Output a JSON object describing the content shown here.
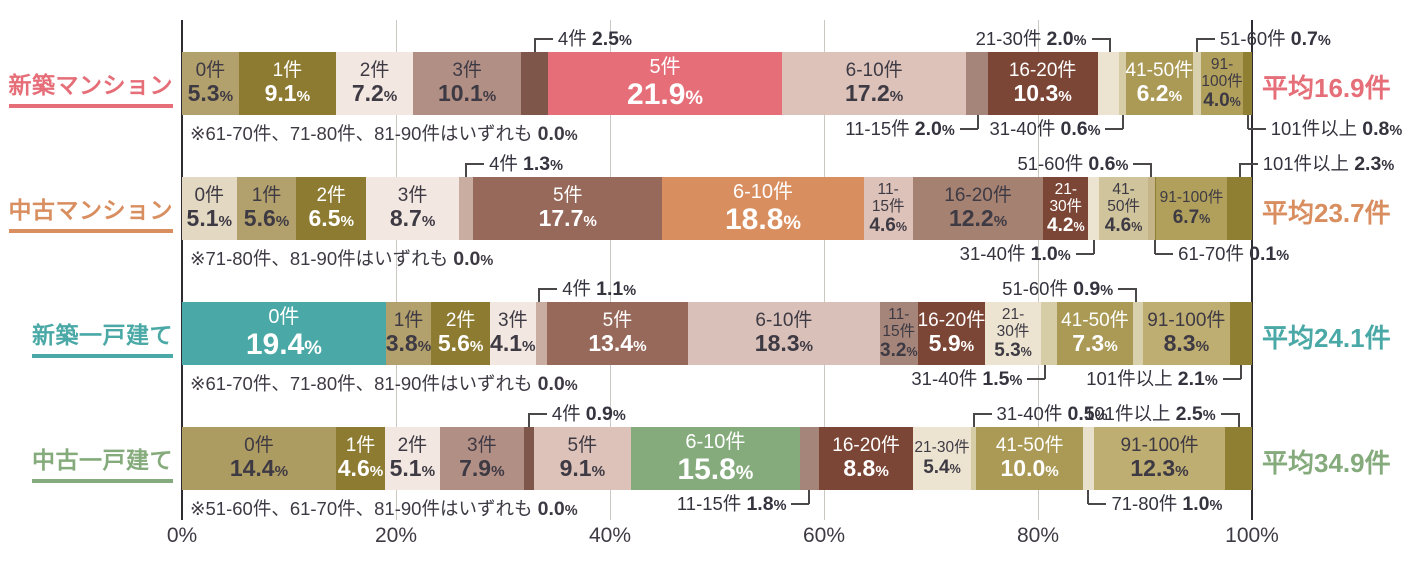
{
  "chart_data": {
    "type": "bar",
    "variant": "horizontal-100pct-stacked",
    "title": "",
    "x_axis": {
      "ticks": [
        "0%",
        "20%",
        "40%",
        "60%",
        "80%",
        "100%"
      ],
      "range": [
        0,
        100
      ],
      "grid": true
    },
    "categories": [
      "0件",
      "1件",
      "2件",
      "3件",
      "4件",
      "5件",
      "6-10件",
      "11-15件",
      "16-20件",
      "21-30件",
      "31-40件",
      "41-50件",
      "51-60件",
      "61-70件",
      "71-80件",
      "81-90件",
      "91-100件",
      "101件以上"
    ],
    "rows": [
      {
        "label": "新築マンション",
        "accent": "#e56e78",
        "average_label": "平均16.9件",
        "note": {
          "text": "※61-70件、71-80件、81-90件はいずれも ",
          "value": "0.0",
          "suffix": "%"
        },
        "zero_categories": [
          "61-70件",
          "71-80件",
          "81-90件"
        ],
        "segments": [
          {
            "cat": "0件",
            "pct": "5.3",
            "color": "#b3a16d",
            "tc": "d",
            "lines": [
              "0件"
            ],
            "size": "m",
            "co": null
          },
          {
            "cat": "1件",
            "pct": "9.1",
            "color": "#8d7b31",
            "tc": "w",
            "lines": [
              "1件"
            ],
            "size": "m",
            "co": null
          },
          {
            "cat": "2件",
            "pct": "7.2",
            "color": "#f2e8e1",
            "tc": "d",
            "lines": [
              "2件"
            ],
            "size": "m",
            "co": null
          },
          {
            "cat": "3件",
            "pct": "10.1",
            "color": "#b28f85",
            "tc": "d",
            "lines": [
              "3件"
            ],
            "size": "m",
            "co": null
          },
          {
            "cat": "4件",
            "pct": "2.5",
            "color": "#7e564a",
            "tc": "d",
            "lines": [],
            "size": "m",
            "co": {
              "side": "above",
              "text": "right"
            }
          },
          {
            "cat": "5件",
            "pct": "21.9",
            "color": "#e56e78",
            "tc": "w",
            "lines": [
              "5件"
            ],
            "size": "l",
            "co": null
          },
          {
            "cat": "6-10件",
            "pct": "17.2",
            "color": "#dcc2b9",
            "tc": "d",
            "lines": [
              "6-10件"
            ],
            "size": "m",
            "co": null
          },
          {
            "cat": "11-15件",
            "pct": "2.0",
            "color": "#a5857a",
            "tc": "d",
            "lines": [],
            "size": "m",
            "co": {
              "side": "below",
              "text": "left"
            }
          },
          {
            "cat": "16-20件",
            "pct": "10.3",
            "color": "#7c4636",
            "tc": "w",
            "lines": [
              "16-20件"
            ],
            "size": "m",
            "co": null
          },
          {
            "cat": "21-30件",
            "pct": "2.0",
            "color": "#ece4d0",
            "tc": "d",
            "lines": [],
            "size": "m",
            "co": {
              "side": "above",
              "text": "left"
            }
          },
          {
            "cat": "31-40件",
            "pct": "0.6",
            "color": "#d6cca6",
            "tc": "d",
            "lines": [],
            "size": "m",
            "co": {
              "side": "below",
              "text": "left"
            }
          },
          {
            "cat": "41-50件",
            "pct": "6.2",
            "color": "#ab9a55",
            "tc": "w",
            "lines": [
              "41-50件"
            ],
            "size": "m",
            "co": null
          },
          {
            "cat": "51-60件",
            "pct": "0.7",
            "color": "#d9d0ae",
            "tc": "d",
            "lines": [],
            "size": "m",
            "co": {
              "side": "above",
              "text": "right"
            }
          },
          {
            "cat": "91-100件",
            "pct": "4.0",
            "color": "#b0a05c",
            "tc": "d",
            "lines": [
              "91-",
              "100件"
            ],
            "size": "s",
            "co": null
          },
          {
            "cat": "101件以上",
            "pct": "0.8",
            "color": "#8f7f33",
            "tc": "d",
            "lines": [],
            "size": "m",
            "co": {
              "side": "below",
              "text": "right"
            }
          }
        ]
      },
      {
        "label": "中古マンション",
        "accent": "#d98e60",
        "average_label": "平均23.7件",
        "note": {
          "text": "※71-80件、81-90件はいずれも ",
          "value": "0.0",
          "suffix": "%"
        },
        "zero_categories": [
          "71-80件",
          "81-90件"
        ],
        "segments": [
          {
            "cat": "0件",
            "pct": "5.1",
            "color": "#e3d9c2",
            "tc": "d",
            "lines": [
              "0件"
            ],
            "size": "m",
            "co": null
          },
          {
            "cat": "1件",
            "pct": "5.6",
            "color": "#b3a16d",
            "tc": "d",
            "lines": [
              "1件"
            ],
            "size": "m",
            "co": null
          },
          {
            "cat": "2件",
            "pct": "6.5",
            "color": "#8d7b31",
            "tc": "w",
            "lines": [
              "2件"
            ],
            "size": "m",
            "co": null
          },
          {
            "cat": "3件",
            "pct": "8.7",
            "color": "#f2e8e1",
            "tc": "d",
            "lines": [
              "3件"
            ],
            "size": "m",
            "co": null
          },
          {
            "cat": "4件",
            "pct": "1.3",
            "color": "#c9ada1",
            "tc": "d",
            "lines": [],
            "size": "m",
            "co": {
              "side": "above",
              "text": "right"
            }
          },
          {
            "cat": "5件",
            "pct": "17.7",
            "color": "#97695b",
            "tc": "w",
            "lines": [
              "5件"
            ],
            "size": "m",
            "co": null
          },
          {
            "cat": "6-10件",
            "pct": "18.8",
            "color": "#d98e60",
            "tc": "w",
            "lines": [
              "6-10件"
            ],
            "size": "l",
            "co": null
          },
          {
            "cat": "11-15件",
            "pct": "4.6",
            "color": "#dcc2b9",
            "tc": "d",
            "lines": [
              "11-",
              "15件"
            ],
            "size": "s",
            "co": null
          },
          {
            "cat": "16-20件",
            "pct": "12.2",
            "color": "#a58172",
            "tc": "d",
            "lines": [
              "16-20件"
            ],
            "size": "m",
            "co": null
          },
          {
            "cat": "21-30件",
            "pct": "4.2",
            "color": "#7c4636",
            "tc": "w",
            "lines": [
              "21-",
              "30件"
            ],
            "size": "s",
            "co": null
          },
          {
            "cat": "31-40件",
            "pct": "1.0",
            "color": "#ece4d0",
            "tc": "d",
            "lines": [],
            "size": "m",
            "co": {
              "side": "below",
              "text": "left"
            }
          },
          {
            "cat": "41-50件",
            "pct": "4.6",
            "color": "#cfc49b",
            "tc": "d",
            "lines": [
              "41-",
              "50件"
            ],
            "size": "s",
            "co": null
          },
          {
            "cat": "51-60件",
            "pct": "0.6",
            "color": "#c4b488",
            "tc": "d",
            "lines": [],
            "size": "m",
            "co": {
              "side": "above",
              "text": "left"
            }
          },
          {
            "cat": "61-70件",
            "pct": "0.1",
            "color": "#8f7f33",
            "tc": "d",
            "lines": [],
            "size": "m",
            "co": {
              "side": "below",
              "text": "right"
            }
          },
          {
            "cat": "91-100件",
            "pct": "6.7",
            "color": "#b0a05c",
            "tc": "d",
            "lines": [
              "91-100件"
            ],
            "size": "s",
            "co": null
          },
          {
            "cat": "101件以上",
            "pct": "2.3",
            "color": "#8f7f33",
            "tc": "d",
            "lines": [],
            "size": "m",
            "co": {
              "side": "above",
              "text": "right"
            }
          }
        ]
      },
      {
        "label": "新築一戸建て",
        "accent": "#4aa9a6",
        "average_label": "平均24.1件",
        "note": {
          "text": "※61-70件、71-80件、81-90件はいずれも ",
          "value": "0.0",
          "suffix": "%"
        },
        "zero_categories": [
          "61-70件",
          "71-80件",
          "81-90件"
        ],
        "segments": [
          {
            "cat": "0件",
            "pct": "19.4",
            "color": "#4aa9a6",
            "tc": "w",
            "lines": [
              "0件"
            ],
            "size": "l",
            "co": null
          },
          {
            "cat": "1件",
            "pct": "3.8",
            "color": "#b3a16d",
            "tc": "d",
            "lines": [
              "1件"
            ],
            "size": "m",
            "co": null
          },
          {
            "cat": "2件",
            "pct": "5.6",
            "color": "#8d7b31",
            "tc": "w",
            "lines": [
              "2件"
            ],
            "size": "m",
            "co": null
          },
          {
            "cat": "3件",
            "pct": "4.1",
            "color": "#f2e8e1",
            "tc": "d",
            "lines": [
              "3件"
            ],
            "size": "m",
            "co": null
          },
          {
            "cat": "4件",
            "pct": "1.1",
            "color": "#c9ada1",
            "tc": "d",
            "lines": [],
            "size": "m",
            "co": {
              "side": "above",
              "text": "right"
            }
          },
          {
            "cat": "5件",
            "pct": "13.4",
            "color": "#97695b",
            "tc": "w",
            "lines": [
              "5件"
            ],
            "size": "m",
            "co": null
          },
          {
            "cat": "6-10件",
            "pct": "18.3",
            "color": "#d9c0b8",
            "tc": "d",
            "lines": [
              "6-10件"
            ],
            "size": "m",
            "co": null
          },
          {
            "cat": "11-15件",
            "pct": "3.2",
            "color": "#a5857a",
            "tc": "d",
            "lines": [
              "11-",
              "15件"
            ],
            "size": "s",
            "co": null
          },
          {
            "cat": "16-20件",
            "pct": "5.9",
            "color": "#7c4636",
            "tc": "w",
            "lines": [
              "16-20件"
            ],
            "size": "m",
            "co": null
          },
          {
            "cat": "21-30件",
            "pct": "5.3",
            "color": "#ece4d0",
            "tc": "d",
            "lines": [
              "21-",
              "30件"
            ],
            "size": "s",
            "co": null
          },
          {
            "cat": "31-40件",
            "pct": "1.5",
            "color": "#d6cca6",
            "tc": "d",
            "lines": [],
            "size": "m",
            "co": {
              "side": "below",
              "text": "left"
            }
          },
          {
            "cat": "41-50件",
            "pct": "7.3",
            "color": "#ab9a55",
            "tc": "w",
            "lines": [
              "41-50件"
            ],
            "size": "m",
            "co": null
          },
          {
            "cat": "51-60件",
            "pct": "0.9",
            "color": "#d9d0ae",
            "tc": "d",
            "lines": [],
            "size": "m",
            "co": {
              "side": "above",
              "text": "left"
            }
          },
          {
            "cat": "91-100件",
            "pct": "8.3",
            "color": "#bfae72",
            "tc": "d",
            "lines": [
              "91-100件"
            ],
            "size": "m",
            "co": null
          },
          {
            "cat": "101件以上",
            "pct": "2.1",
            "color": "#8f7f33",
            "tc": "d",
            "lines": [],
            "size": "m",
            "co": {
              "side": "below",
              "text": "left"
            }
          }
        ]
      },
      {
        "label": "中古一戸建て",
        "accent": "#85ab7c",
        "average_label": "平均34.9件",
        "note": {
          "text": "※51-60件、61-70件、81-90件はいずれも ",
          "value": "0.0",
          "suffix": "%"
        },
        "zero_categories": [
          "51-60件",
          "61-70件",
          "81-90件"
        ],
        "segments": [
          {
            "cat": "0件",
            "pct": "14.4",
            "color": "#ad9c62",
            "tc": "d",
            "lines": [
              "0件"
            ],
            "size": "m",
            "co": null
          },
          {
            "cat": "1件",
            "pct": "4.6",
            "color": "#8d7b31",
            "tc": "w",
            "lines": [
              "1件"
            ],
            "size": "m",
            "co": null
          },
          {
            "cat": "2件",
            "pct": "5.1",
            "color": "#f2e8e1",
            "tc": "d",
            "lines": [
              "2件"
            ],
            "size": "m",
            "co": null
          },
          {
            "cat": "3件",
            "pct": "7.9",
            "color": "#b28f85",
            "tc": "d",
            "lines": [
              "3件"
            ],
            "size": "m",
            "co": null
          },
          {
            "cat": "4件",
            "pct": "0.9",
            "color": "#7e564a",
            "tc": "d",
            "lines": [],
            "size": "m",
            "co": {
              "side": "above",
              "text": "right"
            }
          },
          {
            "cat": "5件",
            "pct": "9.1",
            "color": "#dcc2b9",
            "tc": "d",
            "lines": [
              "5件"
            ],
            "size": "m",
            "co": null
          },
          {
            "cat": "6-10件",
            "pct": "15.8",
            "color": "#85ab7c",
            "tc": "w",
            "lines": [
              "6-10件"
            ],
            "size": "l",
            "co": null
          },
          {
            "cat": "11-15件",
            "pct": "1.8",
            "color": "#a5857a",
            "tc": "d",
            "lines": [],
            "size": "m",
            "co": {
              "side": "below",
              "text": "left"
            }
          },
          {
            "cat": "16-20件",
            "pct": "8.8",
            "color": "#7c4636",
            "tc": "w",
            "lines": [
              "16-20件"
            ],
            "size": "m",
            "co": null
          },
          {
            "cat": "21-30件",
            "pct": "5.4",
            "color": "#ece4d0",
            "tc": "d",
            "lines": [
              "21-30件"
            ],
            "size": "s",
            "co": null
          },
          {
            "cat": "31-40件",
            "pct": "0.5",
            "color": "#d6cca6",
            "tc": "d",
            "lines": [],
            "size": "m",
            "co": {
              "side": "above",
              "text": "right"
            }
          },
          {
            "cat": "41-50件",
            "pct": "10.0",
            "color": "#ab9a55",
            "tc": "w",
            "lines": [
              "41-50件"
            ],
            "size": "m",
            "co": null
          },
          {
            "cat": "71-80件",
            "pct": "1.0",
            "color": "#e8e0ca",
            "tc": "d",
            "lines": [],
            "size": "m",
            "co": {
              "side": "below",
              "text": "right"
            }
          },
          {
            "cat": "91-100件",
            "pct": "12.3",
            "color": "#bfae72",
            "tc": "d",
            "lines": [
              "91-100件"
            ],
            "size": "m",
            "co": null
          },
          {
            "cat": "101件以上",
            "pct": "2.5",
            "color": "#8f7f33",
            "tc": "d",
            "lines": [],
            "size": "m",
            "co": {
              "side": "above",
              "text": "left"
            }
          }
        ]
      }
    ]
  }
}
